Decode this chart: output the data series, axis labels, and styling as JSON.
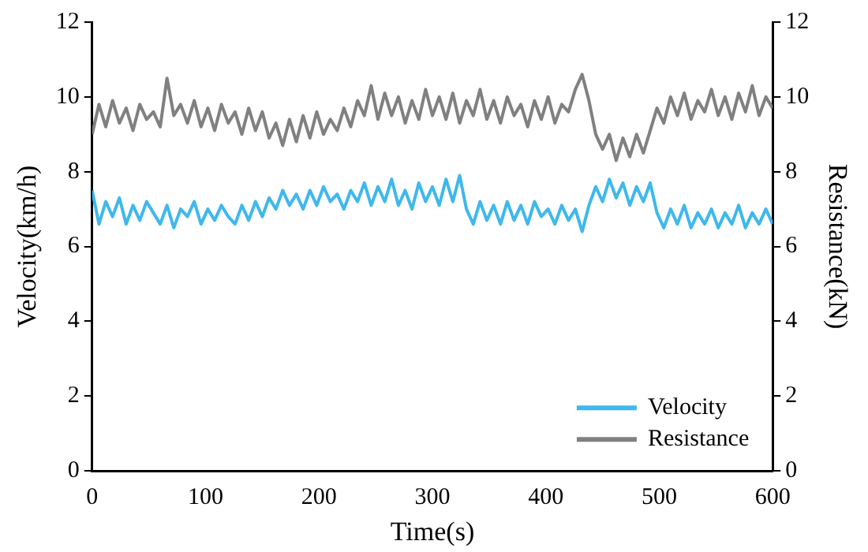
{
  "chart_data": {
    "type": "line",
    "xlabel": "Time(s)",
    "ylabel": "Velocity(km/h)",
    "y2label": "Resistance(kN)",
    "x": [
      0,
      6,
      12,
      18,
      24,
      30,
      36,
      42,
      48,
      54,
      60,
      66,
      72,
      78,
      84,
      90,
      96,
      102,
      108,
      114,
      120,
      126,
      132,
      138,
      144,
      150,
      156,
      162,
      168,
      174,
      180,
      186,
      192,
      198,
      204,
      210,
      216,
      222,
      228,
      234,
      240,
      246,
      252,
      258,
      264,
      270,
      276,
      282,
      288,
      294,
      300,
      306,
      312,
      318,
      324,
      330,
      336,
      342,
      348,
      354,
      360,
      366,
      372,
      378,
      384,
      390,
      396,
      402,
      408,
      414,
      420,
      426,
      432,
      438,
      444,
      450,
      456,
      462,
      468,
      474,
      480,
      486,
      492,
      498,
      504,
      510,
      516,
      522,
      528,
      534,
      540,
      546,
      552,
      558,
      564,
      570,
      576,
      582,
      588,
      594,
      600
    ],
    "series": [
      {
        "name": "Velocity",
        "color": "#3fb8ec",
        "values": [
          7.5,
          6.6,
          7.2,
          6.8,
          7.3,
          6.6,
          7.1,
          6.7,
          7.2,
          6.9,
          6.6,
          7.1,
          6.5,
          7.0,
          6.8,
          7.2,
          6.6,
          7.0,
          6.7,
          7.1,
          6.8,
          6.6,
          7.1,
          6.7,
          7.2,
          6.8,
          7.3,
          7.0,
          7.5,
          7.1,
          7.4,
          7.0,
          7.5,
          7.1,
          7.6,
          7.2,
          7.4,
          7.0,
          7.5,
          7.2,
          7.7,
          7.1,
          7.6,
          7.2,
          7.8,
          7.1,
          7.5,
          7.0,
          7.7,
          7.2,
          7.6,
          7.1,
          7.8,
          7.2,
          7.9,
          7.0,
          6.6,
          7.2,
          6.7,
          7.1,
          6.6,
          7.2,
          6.7,
          7.1,
          6.6,
          7.2,
          6.8,
          7.0,
          6.6,
          7.1,
          6.7,
          7.0,
          6.4,
          7.1,
          7.6,
          7.2,
          7.8,
          7.3,
          7.7,
          7.1,
          7.6,
          7.2,
          7.7,
          6.9,
          6.5,
          7.0,
          6.6,
          7.1,
          6.5,
          6.9,
          6.6,
          7.0,
          6.5,
          6.9,
          6.6,
          7.1,
          6.5,
          6.9,
          6.6,
          7.0,
          6.6
        ]
      },
      {
        "name": "Resistance",
        "color": "#808080",
        "axis": "y2",
        "values": [
          9.0,
          9.8,
          9.2,
          9.9,
          9.3,
          9.7,
          9.1,
          9.8,
          9.4,
          9.6,
          9.2,
          10.5,
          9.5,
          9.8,
          9.3,
          9.9,
          9.2,
          9.7,
          9.1,
          9.8,
          9.3,
          9.6,
          9.0,
          9.7,
          9.1,
          9.6,
          8.9,
          9.3,
          8.7,
          9.4,
          8.8,
          9.5,
          8.9,
          9.6,
          9.0,
          9.4,
          9.1,
          9.7,
          9.2,
          9.9,
          9.5,
          10.3,
          9.4,
          10.1,
          9.5,
          10.0,
          9.3,
          9.9,
          9.4,
          10.2,
          9.5,
          10.0,
          9.4,
          10.1,
          9.3,
          9.9,
          9.5,
          10.2,
          9.4,
          9.9,
          9.3,
          10.0,
          9.5,
          9.8,
          9.2,
          9.9,
          9.4,
          10.0,
          9.3,
          9.8,
          9.6,
          10.2,
          10.6,
          9.9,
          9.0,
          8.6,
          9.0,
          8.3,
          8.9,
          8.4,
          9.0,
          8.5,
          9.1,
          9.7,
          9.3,
          10.0,
          9.5,
          10.1,
          9.4,
          9.9,
          9.6,
          10.2,
          9.5,
          10.0,
          9.4,
          10.1,
          9.6,
          10.3,
          9.5,
          10.0,
          9.7
        ]
      }
    ],
    "xlim": [
      0,
      600
    ],
    "xticks": [
      0,
      100,
      200,
      300,
      400,
      500,
      600
    ],
    "ylim": [
      0,
      12
    ],
    "yticks": [
      0,
      2,
      4,
      6,
      8,
      10,
      12
    ],
    "y2lim": [
      0,
      12
    ],
    "y2ticks": [
      0,
      2,
      4,
      6,
      8,
      10,
      12
    ],
    "legend": "bottom right",
    "grid": false,
    "marker": "none",
    "line_style": "solid"
  }
}
